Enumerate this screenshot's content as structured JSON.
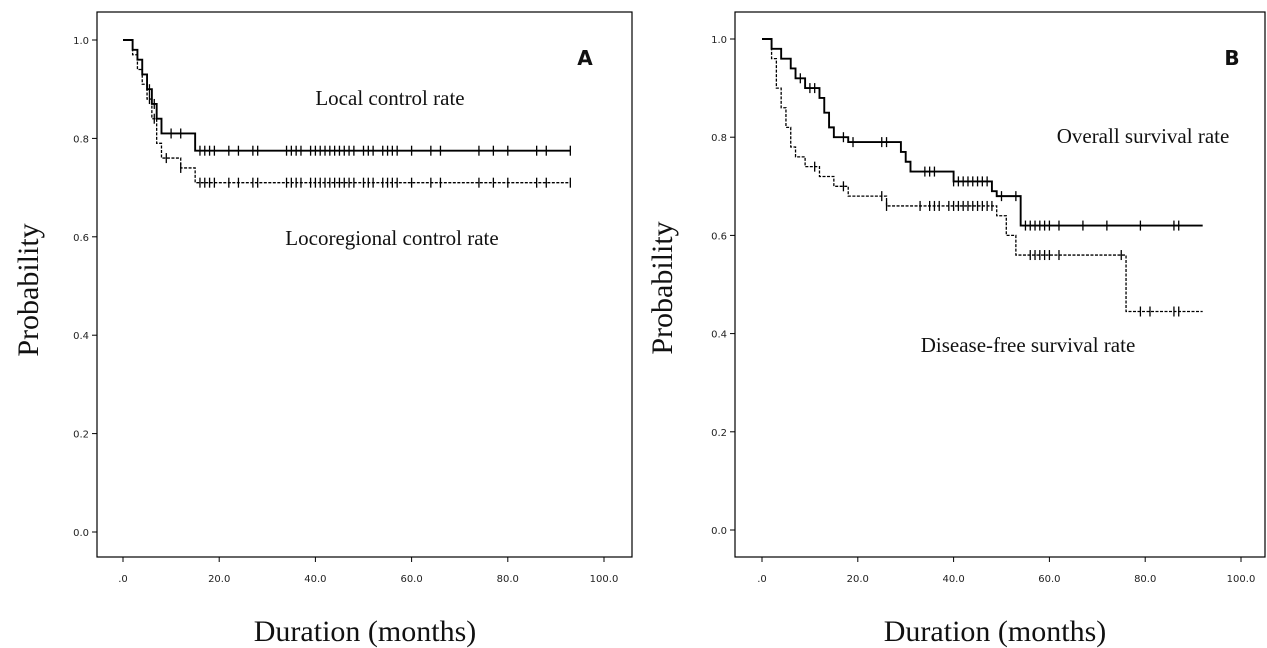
{
  "chart_data": [
    {
      "type": "line",
      "panel_label": "A",
      "xlabel": "Duration (months)",
      "ylabel": "Probability",
      "xlim": [
        0,
        100
      ],
      "ylim": [
        0,
        1
      ],
      "x_tick_labels": [
        ".0",
        "20.0",
        "40.0",
        "60.0",
        "80.0",
        "100.0"
      ],
      "x_tick_values": [
        0,
        20,
        40,
        60,
        80,
        100
      ],
      "y_tick_labels": [
        "0.0",
        "0.2",
        "0.4",
        "0.6",
        "0.8",
        "1.0"
      ],
      "y_tick_values": [
        0,
        0.2,
        0.4,
        0.6,
        0.8,
        1.0
      ],
      "grid": false,
      "annotations": [
        "Local control rate",
        "Locoregional control rate"
      ],
      "series": [
        {
          "style": "solid",
          "annotation": "Local control rate",
          "steps": [
            [
              0,
              1.0
            ],
            [
              2,
              0.98
            ],
            [
              3,
              0.96
            ],
            [
              4,
              0.93
            ],
            [
              5,
              0.9
            ],
            [
              6,
              0.87
            ],
            [
              7,
              0.84
            ],
            [
              8,
              0.81
            ],
            [
              15,
              0.775
            ],
            [
              93,
              0.775
            ]
          ],
          "censored": [
            5.5,
            6.5,
            10,
            12,
            16,
            17,
            18,
            19,
            22,
            24,
            27,
            28,
            34,
            35,
            36,
            37,
            39,
            40,
            41,
            42,
            43,
            44,
            45,
            46,
            47,
            48,
            50,
            51,
            52,
            54,
            55,
            56,
            57,
            60,
            64,
            66,
            74,
            77,
            80,
            86,
            88,
            93
          ]
        },
        {
          "style": "dashed",
          "annotation": "Locoregional control rate",
          "steps": [
            [
              0,
              1.0
            ],
            [
              2,
              0.97
            ],
            [
              3,
              0.94
            ],
            [
              4,
              0.91
            ],
            [
              5,
              0.88
            ],
            [
              6,
              0.84
            ],
            [
              7,
              0.79
            ],
            [
              8,
              0.76
            ],
            [
              12,
              0.74
            ],
            [
              15,
              0.71
            ],
            [
              93,
              0.71
            ]
          ],
          "censored": [
            5.5,
            6.5,
            9,
            12,
            16,
            17,
            18,
            19,
            22,
            24,
            27,
            28,
            34,
            35,
            36,
            37,
            39,
            40,
            41,
            42,
            43,
            44,
            45,
            46,
            47,
            48,
            50,
            51,
            52,
            54,
            55,
            56,
            57,
            60,
            64,
            66,
            74,
            77,
            80,
            86,
            88,
            93
          ]
        }
      ]
    },
    {
      "type": "line",
      "panel_label": "B",
      "xlabel": "Duration (months)",
      "ylabel": "Probability",
      "xlim": [
        0,
        100
      ],
      "ylim": [
        0,
        1
      ],
      "x_tick_labels": [
        ".0",
        "20.0",
        "40.0",
        "60.0",
        "80.0",
        "100.0"
      ],
      "x_tick_values": [
        0,
        20,
        40,
        60,
        80,
        100
      ],
      "y_tick_labels": [
        "0.0",
        "0.2",
        "0.4",
        "0.6",
        "0.8",
        "1.0"
      ],
      "y_tick_values": [
        0,
        0.2,
        0.4,
        0.6,
        0.8,
        1.0
      ],
      "grid": false,
      "annotations": [
        "Overall survival rate",
        "Disease-free survival rate"
      ],
      "series": [
        {
          "style": "solid",
          "annotation": "Overall survival rate",
          "steps": [
            [
              0,
              1.0
            ],
            [
              2,
              0.98
            ],
            [
              4,
              0.96
            ],
            [
              6,
              0.94
            ],
            [
              7,
              0.92
            ],
            [
              9,
              0.9
            ],
            [
              12,
              0.88
            ],
            [
              13,
              0.85
            ],
            [
              14,
              0.82
            ],
            [
              15,
              0.8
            ],
            [
              18,
              0.79
            ],
            [
              29,
              0.77
            ],
            [
              30,
              0.75
            ],
            [
              31,
              0.73
            ],
            [
              40,
              0.71
            ],
            [
              48,
              0.69
            ],
            [
              49,
              0.68
            ],
            [
              54,
              0.62
            ],
            [
              92,
              0.62
            ]
          ],
          "censored": [
            8,
            10,
            11,
            17,
            19,
            25,
            26,
            34,
            35,
            36,
            40,
            41,
            42,
            43,
            44,
            45,
            46,
            47,
            50,
            53,
            55,
            56,
            57,
            58,
            59,
            60,
            62,
            67,
            72,
            79,
            86,
            87
          ]
        },
        {
          "style": "dashed",
          "annotation": "Disease-free survival rate",
          "steps": [
            [
              0,
              1.0
            ],
            [
              2,
              0.96
            ],
            [
              3,
              0.9
            ],
            [
              4,
              0.86
            ],
            [
              5,
              0.82
            ],
            [
              6,
              0.78
            ],
            [
              7,
              0.76
            ],
            [
              9,
              0.74
            ],
            [
              12,
              0.72
            ],
            [
              15,
              0.7
            ],
            [
              18,
              0.68
            ],
            [
              26,
              0.66
            ],
            [
              49,
              0.64
            ],
            [
              51,
              0.6
            ],
            [
              53,
              0.56
            ],
            [
              76,
              0.445
            ],
            [
              92,
              0.445
            ]
          ],
          "censored": [
            11,
            17,
            25,
            26,
            33,
            35,
            36,
            37,
            39,
            40,
            41,
            42,
            43,
            44,
            45,
            46,
            47,
            48,
            56,
            57,
            58,
            59,
            60,
            62,
            75,
            79,
            81,
            86,
            87
          ]
        }
      ]
    }
  ]
}
